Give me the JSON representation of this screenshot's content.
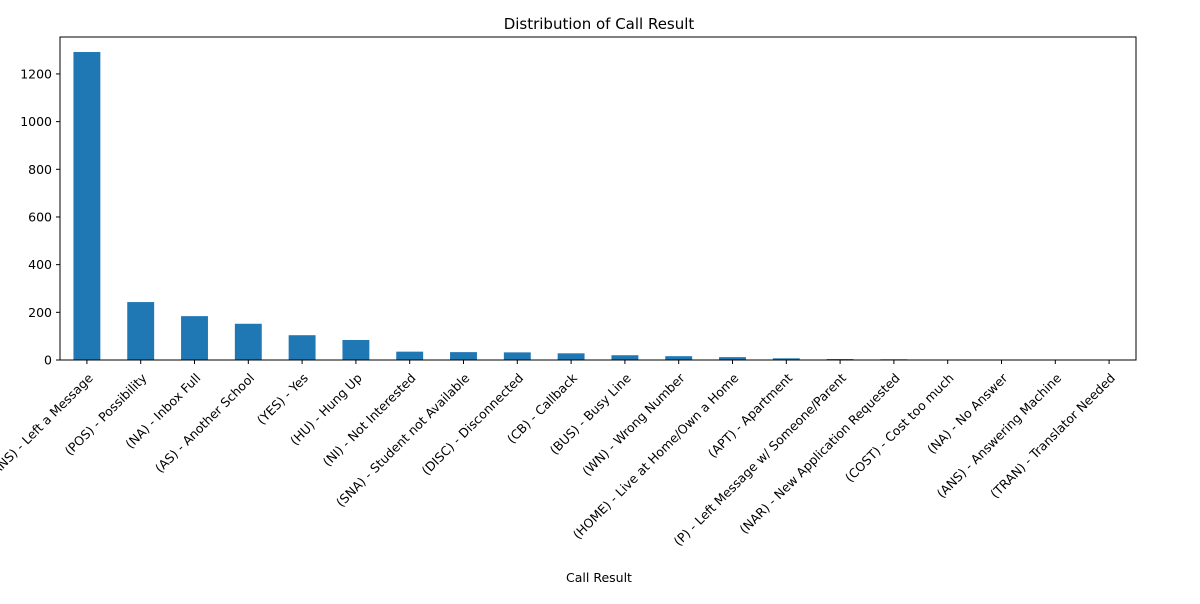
{
  "chart_data": {
    "type": "bar",
    "title": "Distribution of Call Result",
    "xlabel": "Call Result",
    "ylabel": "",
    "ylim": [
      0,
      1355
    ],
    "yticks": [
      0,
      200,
      400,
      600,
      800,
      1000,
      1200
    ],
    "bar_color": "#1f77b4",
    "grid": false,
    "categories": [
      "(ANS) - Left a Message",
      "(POS) - Possibility",
      "(NA) - Inbox Full",
      "(AS) - Another School",
      "(YES) - Yes",
      "(HU) - Hung Up",
      "(NI) - Not Interested",
      "(SNA) - Student not Available",
      "(DISC) - Disconnected",
      "(CB) - Callback",
      "(BUS) - Busy Line",
      "(WN) - Wrong Number",
      "(HOME) - Live at Home/Own a Home",
      "(APT) - Apartment",
      "(P) - Left Message w/ Someone/Parent",
      "(NAR) - New Application Requested",
      "(COST) - Cost too much",
      "(NA) - No Answer",
      "(ANS) - Answering Machine",
      "(TRAN) - Translator Needed"
    ],
    "values": [
      1292,
      243,
      184,
      152,
      104,
      84,
      35,
      33,
      32,
      28,
      20,
      16,
      12,
      7,
      4,
      3,
      2,
      2,
      1,
      1
    ]
  }
}
